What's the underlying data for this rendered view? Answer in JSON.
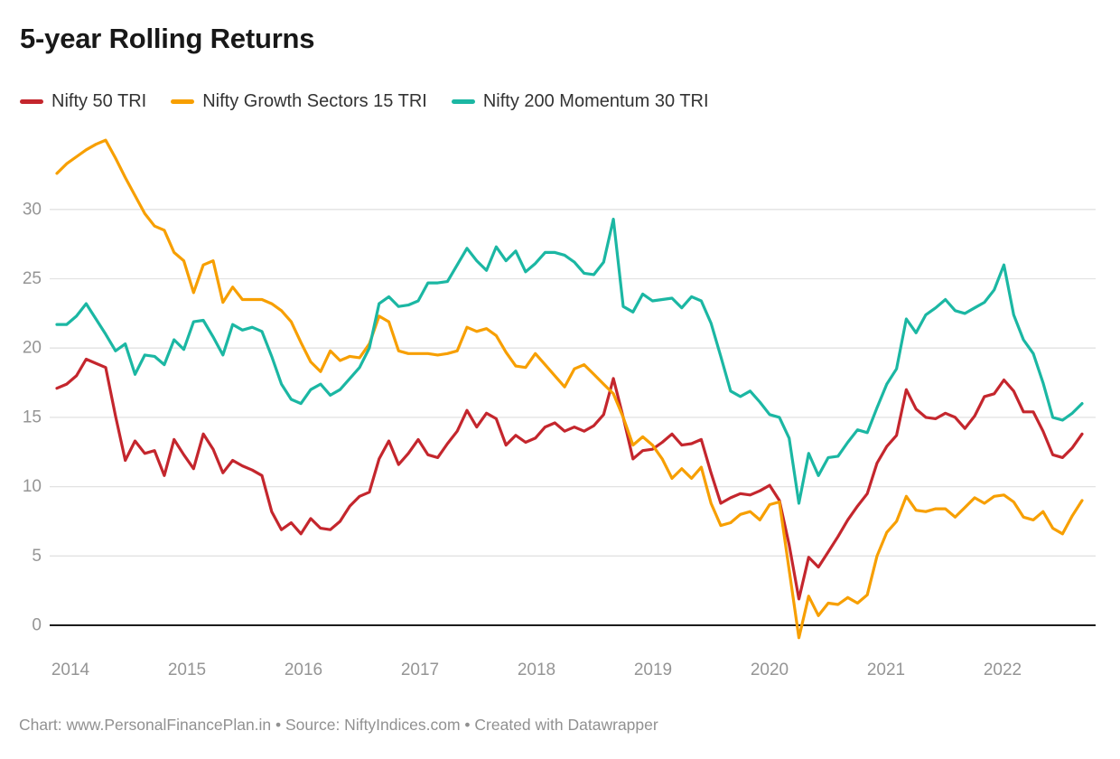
{
  "title": "5-year Rolling Returns",
  "footer": "Chart: www.PersonalFinancePlan.in • Source: NiftyIndices.com • Created with Datawrapper",
  "colors": {
    "nifty50": "#c4262d",
    "growth15": "#f79f00",
    "momentum30": "#1bb7a3",
    "grid": "#e2e2e2",
    "zero_line": "#1c1c1c",
    "axis_text": "#959595"
  },
  "chart_data": {
    "type": "line",
    "title": "5-year Rolling Returns",
    "xlabel": "",
    "ylabel": "",
    "x_frequency": "monthly",
    "x_start": "2013-11",
    "x_end": "2022-08",
    "points_per_series": 106,
    "x_axis_ticks": [
      "2014",
      "2015",
      "2016",
      "2017",
      "2018",
      "2019",
      "2020",
      "2021",
      "2022"
    ],
    "y_axis_ticks": [
      30,
      25,
      20,
      15,
      10,
      5,
      0
    ],
    "ylim": [
      -1.5,
      35.5
    ],
    "grid": "horizontal-only",
    "legend_position": "top-left",
    "series": [
      {
        "name": "Nifty 50 TRI",
        "color": "#c4262d",
        "values": [
          17.1,
          17.4,
          18.0,
          19.2,
          18.9,
          18.6,
          15.1,
          11.9,
          13.3,
          12.4,
          12.6,
          10.8,
          13.4,
          12.3,
          11.3,
          13.8,
          12.7,
          11.0,
          11.9,
          11.5,
          11.2,
          10.8,
          8.2,
          6.9,
          7.4,
          6.6,
          7.7,
          7.0,
          6.9,
          7.5,
          8.6,
          9.3,
          9.6,
          12.0,
          13.3,
          11.6,
          12.4,
          13.4,
          12.3,
          12.1,
          13.1,
          14.0,
          15.5,
          14.3,
          15.3,
          14.9,
          13.0,
          13.7,
          13.2,
          13.5,
          14.3,
          14.6,
          14.0,
          14.3,
          14.0,
          14.4,
          15.2,
          17.8,
          15.0,
          12.0,
          12.6,
          12.7,
          13.2,
          13.8,
          13.0,
          13.1,
          13.4,
          11.0,
          8.8,
          9.2,
          9.5,
          9.4,
          9.7,
          10.1,
          9.0,
          5.8,
          1.9,
          4.9,
          4.2,
          5.3,
          6.4,
          7.6,
          8.6,
          9.5,
          11.7,
          12.9,
          13.7,
          17.0,
          15.6,
          15.0,
          14.9,
          15.3,
          15.0,
          14.2,
          15.1,
          16.5,
          16.7,
          17.7,
          16.9,
          15.4,
          15.4,
          14.0,
          12.3,
          12.1,
          12.8,
          13.8
        ]
      },
      {
        "name": "Nifty Growth Sectors 15 TRI",
        "color": "#f79f00",
        "values": [
          32.6,
          33.3,
          33.8,
          34.3,
          34.7,
          35.0,
          33.7,
          32.3,
          31.0,
          29.7,
          28.8,
          28.5,
          26.9,
          26.3,
          24.0,
          26.0,
          26.3,
          23.3,
          24.4,
          23.5,
          23.5,
          23.5,
          23.2,
          22.7,
          21.9,
          20.4,
          19.0,
          18.3,
          19.8,
          19.1,
          19.4,
          19.3,
          20.3,
          22.3,
          21.9,
          19.8,
          19.6,
          19.6,
          19.6,
          19.5,
          19.6,
          19.8,
          21.5,
          21.2,
          21.4,
          20.9,
          19.7,
          18.7,
          18.6,
          19.6,
          18.8,
          18.0,
          17.2,
          18.5,
          18.8,
          18.1,
          17.4,
          16.7,
          15.0,
          13.0,
          13.6,
          13.0,
          12.0,
          10.6,
          11.3,
          10.6,
          11.4,
          8.8,
          7.2,
          7.4,
          8.0,
          8.2,
          7.6,
          8.7,
          8.9,
          4.0,
          -0.9,
          2.1,
          0.7,
          1.6,
          1.5,
          2.0,
          1.6,
          2.2,
          5.0,
          6.7,
          7.5,
          9.3,
          8.3,
          8.2,
          8.4,
          8.4,
          7.8,
          8.5,
          9.2,
          8.8,
          9.3,
          9.4,
          8.9,
          7.8,
          7.6,
          8.2,
          7.0,
          6.6,
          7.9,
          9.0
        ]
      },
      {
        "name": "Nifty 200 Momentum 30 TRI",
        "color": "#1bb7a3",
        "values": [
          21.7,
          21.7,
          22.3,
          23.2,
          22.1,
          21.0,
          19.8,
          20.3,
          18.1,
          19.5,
          19.4,
          18.8,
          20.6,
          19.9,
          21.9,
          22.0,
          20.8,
          19.5,
          21.7,
          21.3,
          21.5,
          21.2,
          19.4,
          17.4,
          16.3,
          16.0,
          17.0,
          17.4,
          16.6,
          17.0,
          17.8,
          18.6,
          20.0,
          23.2,
          23.7,
          23.0,
          23.1,
          23.4,
          24.7,
          24.7,
          24.8,
          26.0,
          27.2,
          26.3,
          25.6,
          27.3,
          26.3,
          27.0,
          25.5,
          26.1,
          26.9,
          26.9,
          26.7,
          26.2,
          25.4,
          25.3,
          26.2,
          29.3,
          23.0,
          22.6,
          23.9,
          23.4,
          23.5,
          23.6,
          22.9,
          23.7,
          23.4,
          21.8,
          19.4,
          16.9,
          16.5,
          16.9,
          16.1,
          15.2,
          15.0,
          13.5,
          8.8,
          12.4,
          10.8,
          12.1,
          12.2,
          13.2,
          14.1,
          13.9,
          15.7,
          17.4,
          18.5,
          22.1,
          21.1,
          22.4,
          22.9,
          23.5,
          22.7,
          22.5,
          22.9,
          23.3,
          24.2,
          26.0,
          22.4,
          20.6,
          19.6,
          17.5,
          15.0,
          14.8,
          15.3,
          16.0
        ]
      }
    ]
  }
}
